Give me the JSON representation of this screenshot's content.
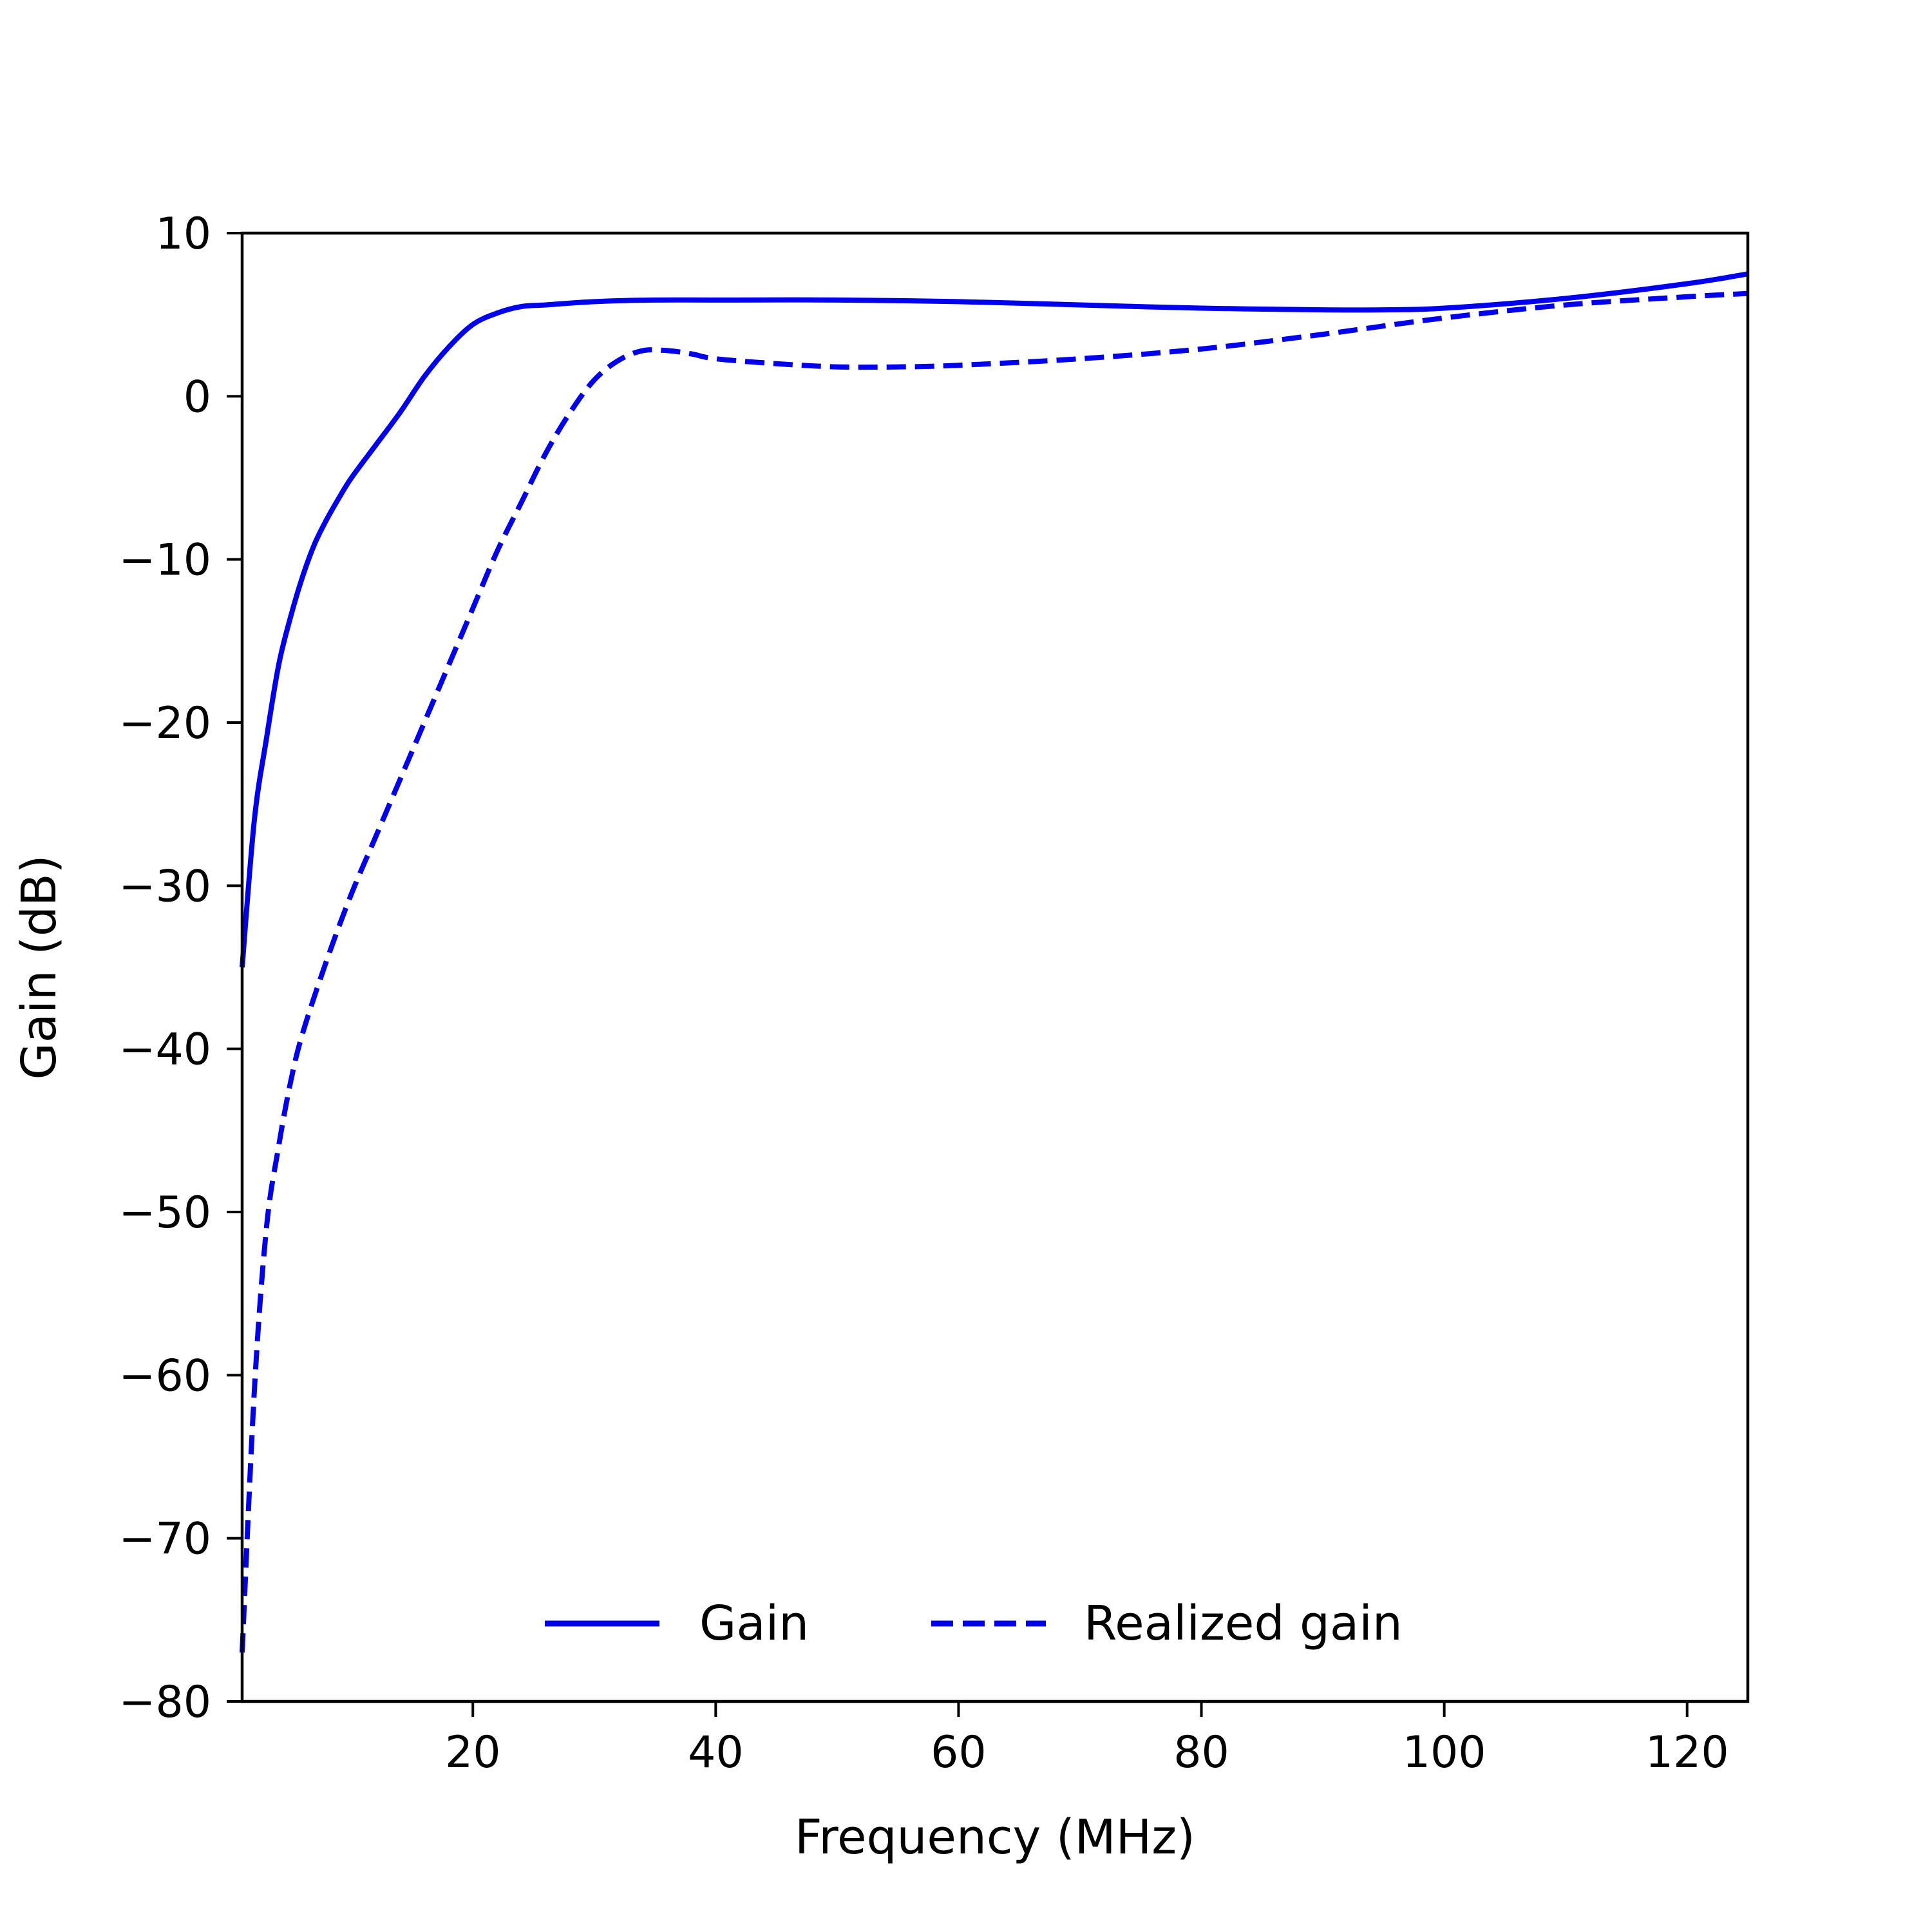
{
  "chart_data": {
    "type": "line",
    "title": "",
    "xlabel": "Frequency (MHz)",
    "ylabel": "Gain (dB)",
    "xlim": [
      1,
      125
    ],
    "ylim": [
      -80,
      10
    ],
    "xticks": [
      20,
      40,
      60,
      80,
      100,
      120
    ],
    "yticks": [
      10,
      0,
      -10,
      -20,
      -30,
      -40,
      -50,
      -60,
      -70,
      -80
    ],
    "xtick_labels": [
      "20",
      "40",
      "60",
      "80",
      "100",
      "120"
    ],
    "ytick_labels": [
      "10",
      "0",
      "−10",
      "−20",
      "−30",
      "−40",
      "−50",
      "−60",
      "−70",
      "−80"
    ],
    "grid": false,
    "legend_position": "bottom-center",
    "series": [
      {
        "name": "Gain",
        "color": "#0000ee",
        "style": "solid",
        "x": [
          1,
          2,
          3,
          4,
          5,
          6,
          7,
          8,
          9,
          10,
          12,
          14,
          16,
          18,
          20,
          22,
          24,
          26,
          30,
          35,
          40,
          50,
          60,
          70,
          80,
          90,
          95,
          100,
          110,
          120,
          125
        ],
        "y": [
          -35,
          -26,
          -21,
          -16.5,
          -13.5,
          -11,
          -9,
          -7.5,
          -6.2,
          -5,
          -3,
          -1,
          1.2,
          3,
          4.4,
          5.1,
          5.5,
          5.6,
          5.8,
          5.9,
          5.9,
          5.9,
          5.8,
          5.6,
          5.4,
          5.3,
          5.3,
          5.4,
          6,
          6.9,
          7.5
        ]
      },
      {
        "name": "Realized gain",
        "color": "#0000ee",
        "style": "dashed",
        "x": [
          1,
          2,
          3,
          4,
          5,
          6,
          8,
          10,
          12,
          14,
          16,
          18,
          20,
          22,
          24,
          26,
          28,
          30,
          32,
          34,
          36,
          38,
          40,
          45,
          50,
          55,
          60,
          70,
          80,
          90,
          100,
          110,
          120,
          125
        ],
        "y": [
          -77,
          -61,
          -51,
          -46,
          -42,
          -39,
          -34.5,
          -30.5,
          -27,
          -23.5,
          -20,
          -16.5,
          -13,
          -9.5,
          -6.5,
          -3.5,
          -1,
          1,
          2.2,
          2.8,
          2.8,
          2.6,
          2.3,
          2,
          1.8,
          1.8,
          1.9,
          2.3,
          2.9,
          3.8,
          4.8,
          5.6,
          6.1,
          6.3
        ]
      }
    ]
  }
}
